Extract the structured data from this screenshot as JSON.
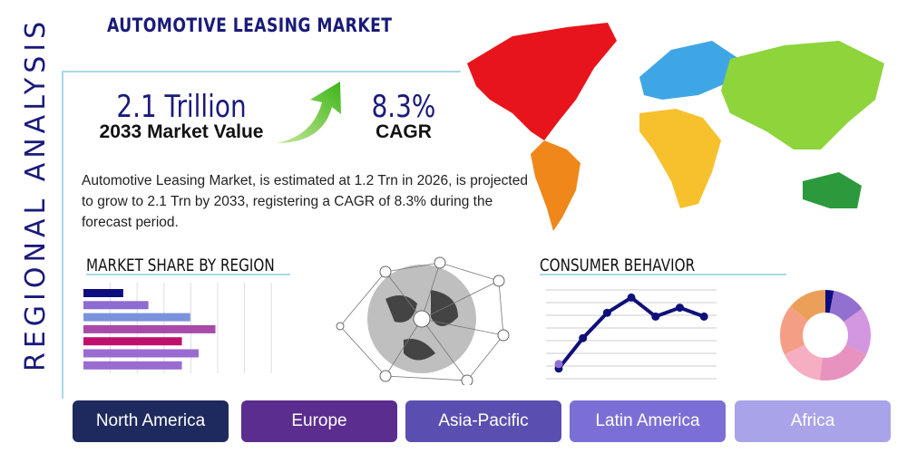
{
  "title": "AUTOMOTIVE LEASING MARKET",
  "side_label": "REGIONAL ANALYSIS",
  "kpi": {
    "value": "2.1 Trillion",
    "value_label": "2033 Market Value",
    "cagr": "8.3%",
    "cagr_label": "CAGR"
  },
  "description": "Automotive Leasing Market, is estimated at 1.2 Trn in 2026, is projected to grow to 2.1 Trn by 2033, registering a CAGR of 8.3% during the forecast period.",
  "sections": {
    "market_share": "MARKET SHARE BY REGION",
    "consumer": "CONSUMER BEHAVIOR"
  },
  "chart_data": [
    {
      "type": "bar",
      "orientation": "horizontal",
      "values": [
        1.9,
        3.1,
        5.1,
        6.3,
        4.7,
        5.5,
        4.7
      ],
      "xlim": [
        0,
        8
      ],
      "grid": true,
      "colors": [
        "#0d0d80",
        "#8e6bd0",
        "#7b93dd",
        "#a84aa8",
        "#c0106e",
        "#9a6bd0",
        "#9a6bd0"
      ]
    },
    {
      "type": "line",
      "values": [
        0.8,
        3.2,
        5.2,
        6.4,
        4.9,
        5.6,
        4.9
      ],
      "ylim": [
        0,
        7
      ],
      "grid": true,
      "color": "#10107a"
    },
    {
      "type": "pie",
      "donut": true,
      "values": [
        3,
        12,
        17,
        20,
        16,
        18,
        14
      ],
      "colors": [
        "#0d0d80",
        "#9270d0",
        "#d396e0",
        "#e892bf",
        "#f6aec2",
        "#f59e86",
        "#eba05a"
      ]
    }
  ],
  "regions": [
    {
      "label": "North America",
      "color": "#1e2a5e"
    },
    {
      "label": "Europe",
      "color": "#5b2d8e"
    },
    {
      "label": "Asia-Pacific",
      "color": "#5a4fb0"
    },
    {
      "label": "Latin America",
      "color": "#7b6fd6"
    },
    {
      "label": "Africa",
      "color": "#a9a4ea"
    }
  ]
}
